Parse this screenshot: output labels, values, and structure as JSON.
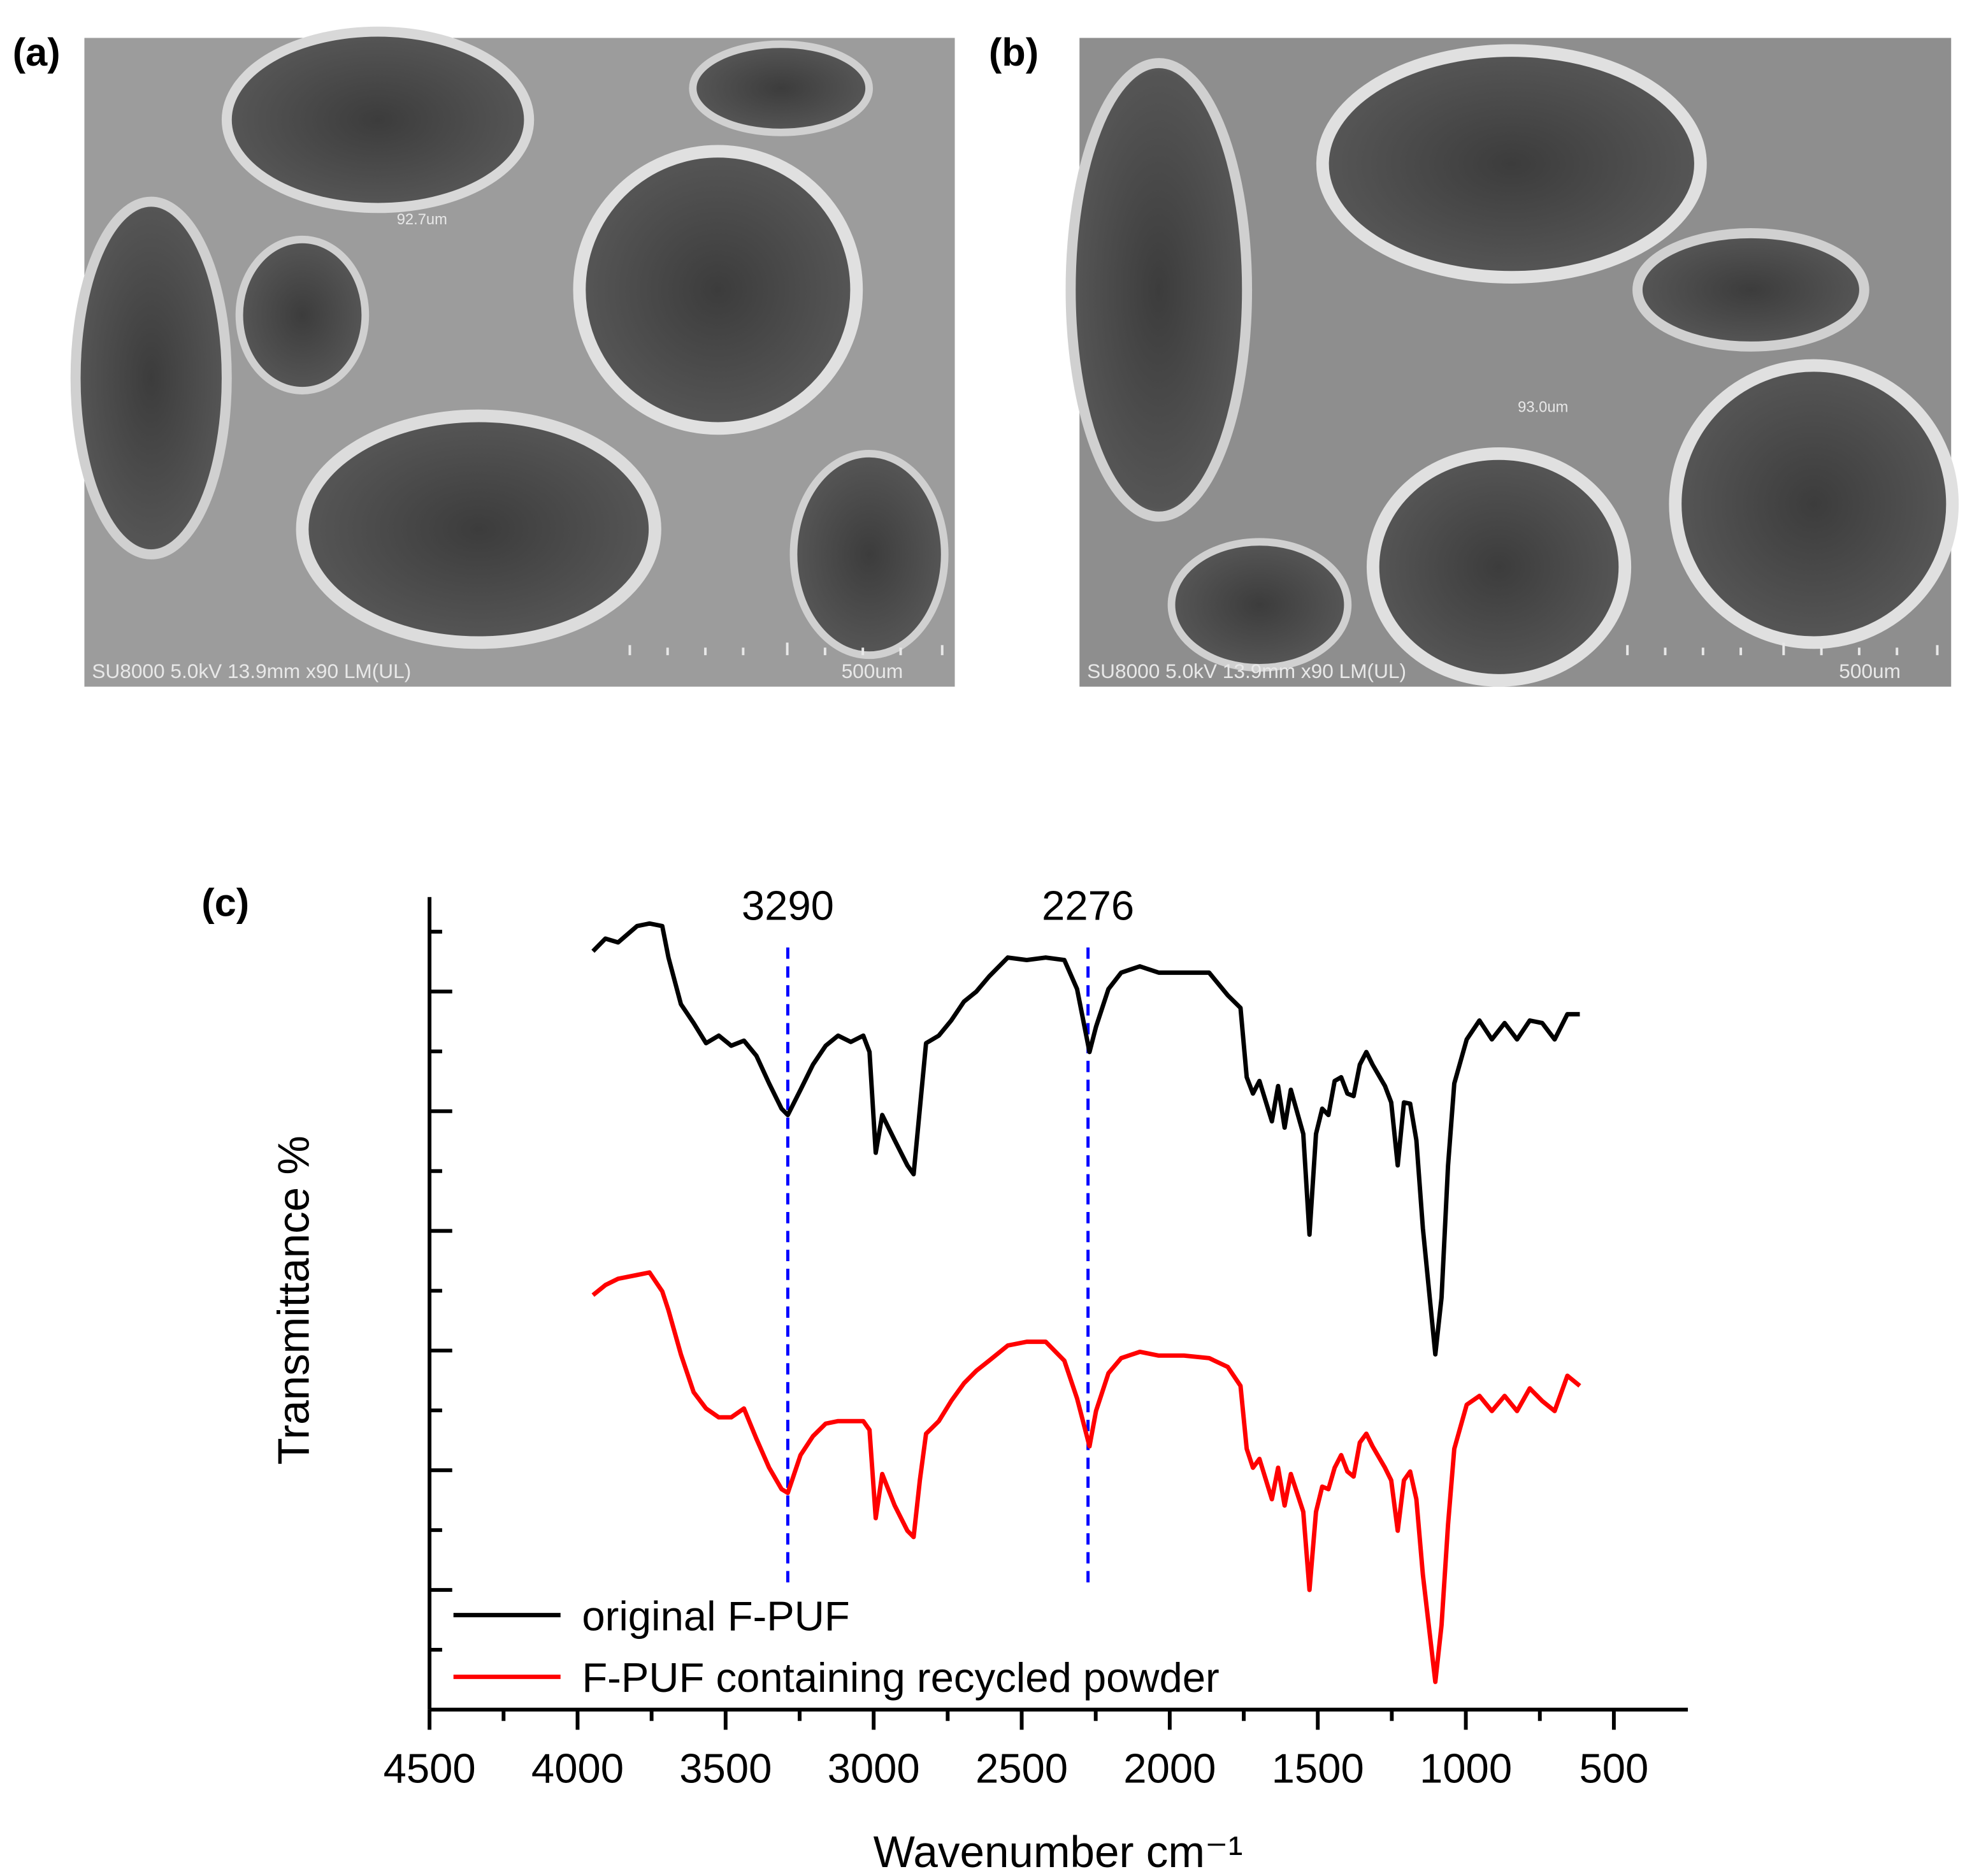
{
  "panels": [
    {
      "label": "(a)",
      "info": "SU8000 5.0kV 13.9mm x90 LM(UL)",
      "scale": "500um",
      "measure": "92.7um"
    },
    {
      "label": "(b)",
      "info": "SU8000 5.0kV 13.9mm x90 LM(UL)",
      "scale": "500um",
      "measure": "93.0um"
    }
  ],
  "chart_data": {
    "type": "line",
    "panel_label": "(c)",
    "xlabel": "Wavenumber cm⁻¹",
    "ylabel": "Transmittance %",
    "x": [
      3948,
      3906,
      3863,
      3799,
      3757,
      3714,
      3693,
      3651,
      3608,
      3566,
      3523,
      3481,
      3438,
      3396,
      3353,
      3311,
      3290,
      3247,
      3205,
      3162,
      3120,
      3077,
      3035,
      3014,
      2993,
      2971,
      2929,
      2886,
      2865,
      2844,
      2823,
      2780,
      2738,
      2695,
      2653,
      2610,
      2547,
      2483,
      2419,
      2356,
      2313,
      2271,
      2249,
      2207,
      2164,
      2101,
      2037,
      1952,
      1867,
      1804,
      1761,
      1740,
      1719,
      1697,
      1655,
      1634,
      1612,
      1591,
      1549,
      1528,
      1506,
      1485,
      1464,
      1443,
      1421,
      1400,
      1379,
      1358,
      1336,
      1315,
      1273,
      1252,
      1230,
      1209,
      1188,
      1167,
      1145,
      1103,
      1082,
      1060,
      1039,
      997,
      954,
      912,
      869,
      827,
      784,
      742,
      700,
      657,
      615
    ],
    "series": [
      {
        "name": "original F-PUF",
        "color": "#000000",
        "values": [
          602,
          612,
          609,
          622,
          624,
          622,
          597,
          560,
          545,
          529,
          535,
          527,
          531,
          519,
          497,
          477,
          472,
          492,
          512,
          527,
          535,
          530,
          535,
          522,
          442,
          472,
          452,
          432,
          425,
          477,
          529,
          535,
          547,
          562,
          570,
          582,
          597,
          595,
          597,
          595,
          572,
          522,
          542,
          572,
          585,
          590,
          585,
          585,
          585,
          567,
          557,
          502,
          489,
          499,
          467,
          495,
          462,
          492,
          457,
          377,
          457,
          477,
          472,
          499,
          502,
          489,
          487,
          512,
          522,
          512,
          495,
          482,
          432,
          482,
          481,
          452,
          382,
          282,
          327,
          432,
          497,
          532,
          547,
          532,
          545,
          532,
          547,
          545,
          532,
          552,
          552
        ]
      },
      {
        "name": "F-PUF containing recycled powder",
        "color": "#ff0000",
        "values": [
          329,
          337,
          342,
          345,
          347,
          332,
          317,
          282,
          252,
          239,
          232,
          232,
          239,
          215,
          192,
          175,
          172,
          202,
          217,
          227,
          229,
          229,
          229,
          222,
          152,
          187,
          162,
          142,
          137,
          182,
          219,
          229,
          245,
          259,
          269,
          277,
          289,
          292,
          292,
          277,
          247,
          209,
          237,
          267,
          279,
          284,
          281,
          281,
          279,
          272,
          257,
          207,
          192,
          199,
          167,
          192,
          162,
          187,
          157,
          95,
          157,
          177,
          175,
          192,
          202,
          189,
          185,
          212,
          219,
          209,
          192,
          182,
          142,
          182,
          189,
          167,
          107,
          22,
          67,
          147,
          207,
          242,
          249,
          237,
          249,
          237,
          255,
          245,
          237,
          265,
          257
        ]
      }
    ],
    "xlim": [
      4500,
      250
    ],
    "xticks": [
      4500,
      4000,
      3500,
      3000,
      2500,
      2000,
      1500,
      1000,
      500
    ],
    "xticks_minor": [
      4250,
      3750,
      3250,
      2750,
      2250,
      1750,
      1250,
      750
    ],
    "ylim": [
      0,
      645
    ],
    "yticks": [
      95,
      190,
      285,
      380,
      475,
      570
    ],
    "yticks_minor": [
      47.5,
      142.5,
      237.5,
      332.5,
      427.5,
      522.5,
      617.5
    ],
    "show_ytick_labels": false,
    "legend": "lower left",
    "annotations": [
      {
        "text": "3290",
        "x": 3290,
        "color": "#0000ff"
      },
      {
        "text": "2276",
        "x": 2276,
        "color": "#0000ff"
      }
    ]
  }
}
